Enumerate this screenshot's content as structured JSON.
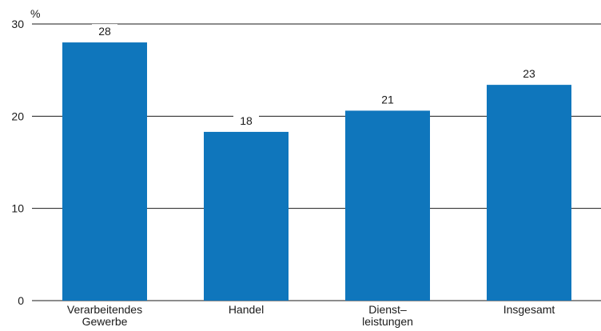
{
  "chart_data": {
    "type": "bar",
    "unit_label": "%",
    "categories": [
      [
        "Verarbeitendes",
        "Gewerbe"
      ],
      [
        "Handel"
      ],
      [
        "Dienst–",
        "leistungen"
      ],
      [
        "Insgesamt"
      ]
    ],
    "values": [
      28,
      18,
      21,
      23
    ],
    "bar_heights": [
      28.0,
      18.3,
      20.6,
      23.4
    ],
    "ylim": [
      0,
      30
    ],
    "yticks": [
      0,
      10,
      20,
      30
    ],
    "grid": true,
    "colors": {
      "bar": "#0f76bc",
      "grid": "#1a1a1a",
      "text": "#1a1a1a"
    }
  }
}
